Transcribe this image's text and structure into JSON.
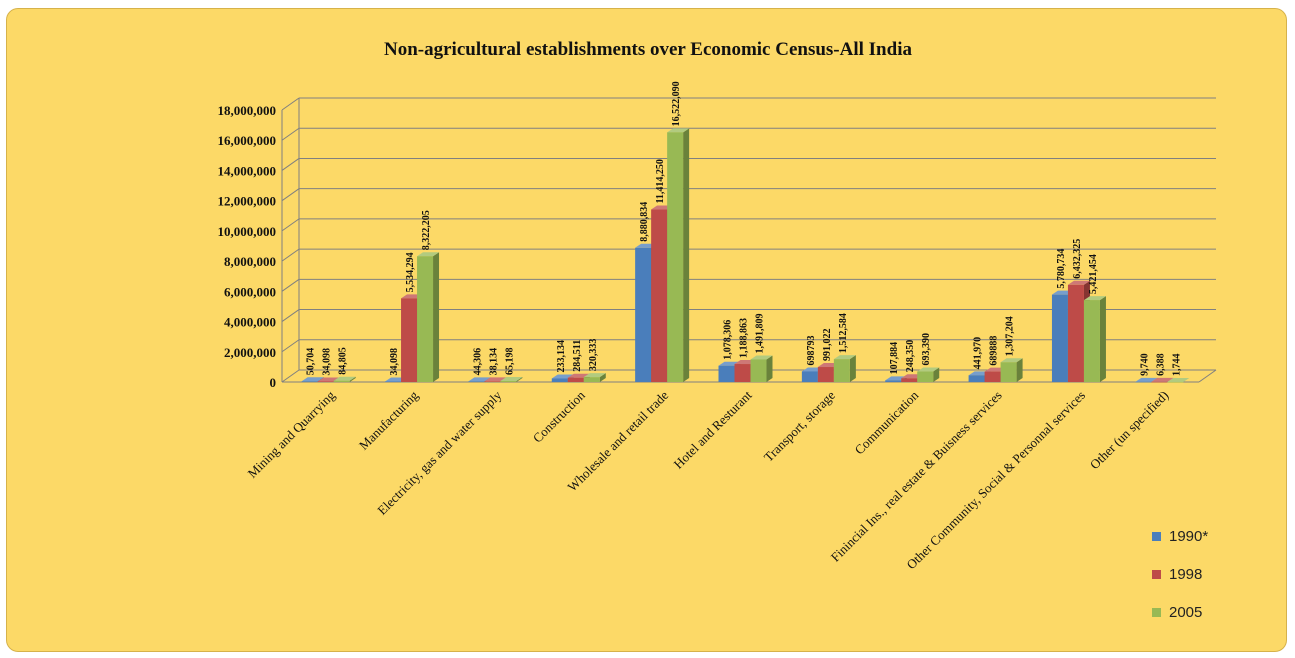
{
  "chart_data": {
    "type": "bar",
    "title": "Non-agricultural establishments over Economic Census-All India",
    "categories": [
      "Mining and Quarrying",
      "Manufacturing",
      "Electricity, gas and water supply",
      "Construction",
      "Wholesale and retail trade",
      "Hotel and Resturant",
      "Transport, storage",
      "Communication",
      "Finincial Ins., real estate & Buisness services",
      "Other Community, Social & Personnal services",
      "Other (un specified)"
    ],
    "series": [
      {
        "name": "1990*",
        "color": "#4a7ebb",
        "values": [
          50704,
          34098,
          44306,
          233134,
          8880834,
          1078306,
          698793,
          107884,
          441970,
          5780734,
          9740
        ],
        "labels": [
          "50,704",
          "34,098",
          "44,306",
          "233,134",
          "8,880,834",
          "1,078,306",
          "698793",
          "107,884",
          "441,970",
          "5,780,734",
          "9,740"
        ]
      },
      {
        "name": "1998",
        "color": "#be4b48",
        "values": [
          34098,
          5534294,
          38134,
          284511,
          11414250,
          1188863,
          991022,
          248350,
          689888,
          6432325,
          6388
        ],
        "labels": [
          "34,098",
          "5,534,294",
          "38,134",
          "284,511",
          "11,414,250",
          "1,188,863",
          "991,022",
          "248,350",
          "689888",
          "6,432,325",
          "6,388"
        ]
      },
      {
        "name": "2005",
        "color": "#98b954",
        "values": [
          84805,
          8322205,
          65198,
          320333,
          16522090,
          1491809,
          1512584,
          693390,
          1307204,
          5421454,
          1744
        ],
        "labels": [
          "84,805",
          "8,322,205",
          "65,198",
          "320,333",
          "16,522,090",
          "1,491,809",
          "1,512,584",
          "693,390",
          "1,307,204",
          "5,421,454",
          "1,744"
        ]
      }
    ],
    "y_ticks": [
      "0",
      "2,000,000",
      "4,000,000",
      "6,000,000",
      "8,000,000",
      "10,000,000",
      "12,000,000",
      "14,000,000",
      "16,000,000",
      "18,000,000"
    ],
    "ylim": [
      0,
      18000000
    ],
    "grid": true,
    "legend_position": "bottom-right"
  }
}
